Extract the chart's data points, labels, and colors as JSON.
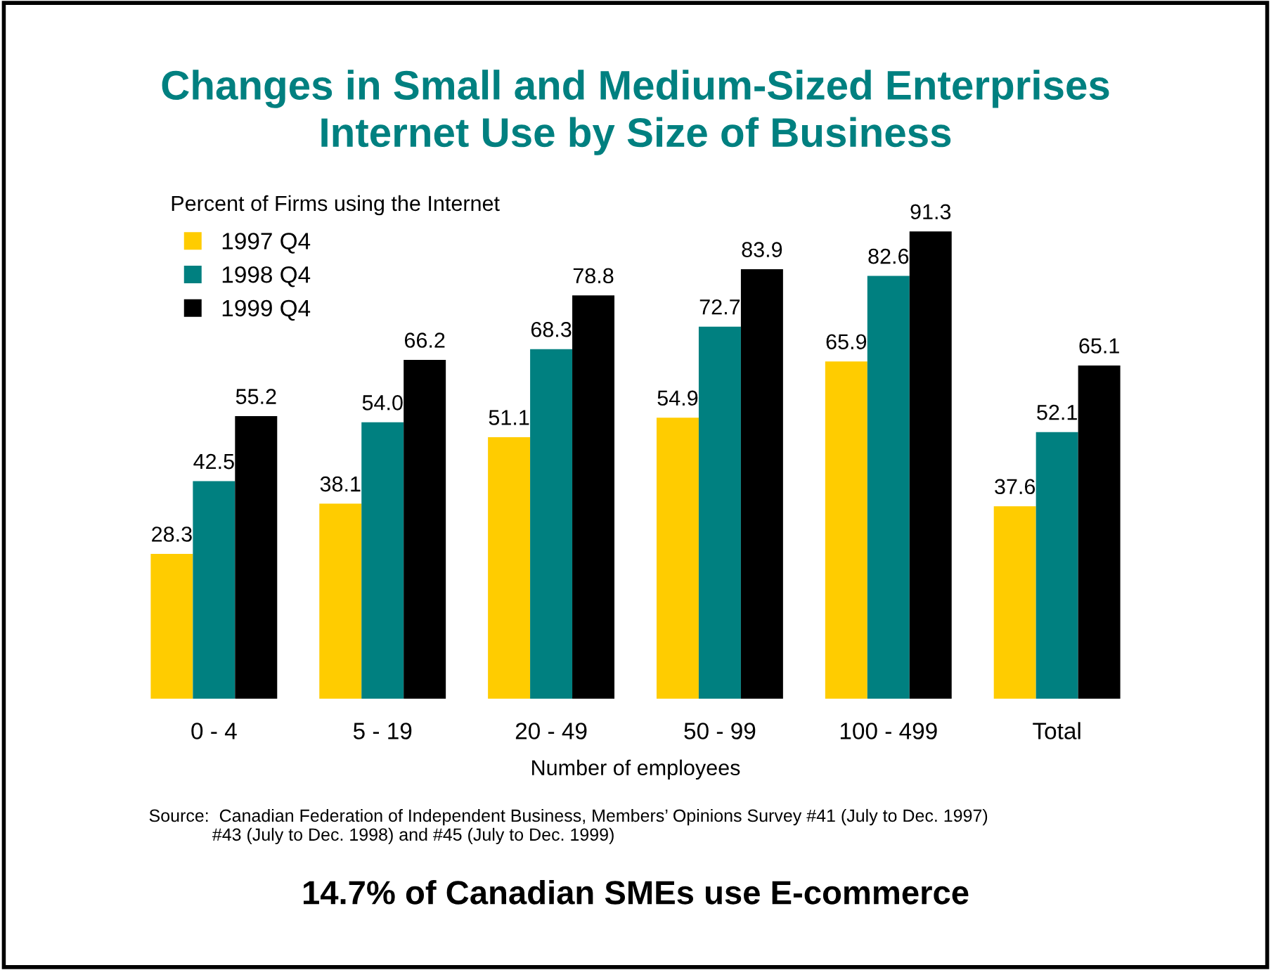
{
  "chart_data": {
    "type": "bar",
    "title": "Changes in Small and Medium-Sized Enterprises\nInternet Use by Size of Business",
    "ylabel": "Percent of Firms using the Internet",
    "xlabel": "Number of employees",
    "categories": [
      "0 - 4",
      "5 - 19",
      "20 - 49",
      "50 - 99",
      "100 - 499",
      "Total"
    ],
    "series": [
      {
        "name": "1997 Q4",
        "color": "#ffcc00",
        "values": [
          28.3,
          38.1,
          51.1,
          54.9,
          65.9,
          37.6
        ],
        "value_labels": [
          "28.3",
          "38.1",
          "51.1",
          "54.9",
          "65.9",
          "37.6"
        ]
      },
      {
        "name": "1998 Q4",
        "color": "#008080",
        "values": [
          42.5,
          54.0,
          68.3,
          72.7,
          82.6,
          52.1
        ],
        "value_labels": [
          "42.5",
          "54.0",
          "68.3",
          "72.7",
          "82.6",
          "52.1"
        ]
      },
      {
        "name": "1999 Q4",
        "color": "#000000",
        "values": [
          55.2,
          66.2,
          78.8,
          83.9,
          91.3,
          65.1
        ],
        "value_labels": [
          "55.2",
          "66.2",
          "78.8",
          "83.9",
          "91.3",
          "65.1"
        ]
      }
    ],
    "legend": "top left",
    "grid": false,
    "annotations": [
      "Source:  Canadian Federation of Independent Business, Members’ Opinions Survey #41 (July to Dec. 1997)\n             #43 (July to Dec. 1998) and #45 (July to Dec. 1999)",
      "14.7% of Canadian SMEs use E-commerce"
    ]
  }
}
